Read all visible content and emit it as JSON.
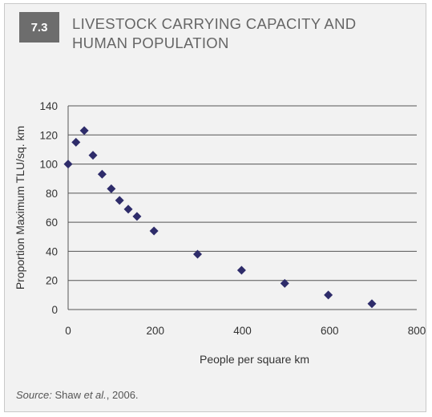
{
  "figure": {
    "number": "7.3",
    "title_line1": "LIVESTOCK CARRYING CAPACITY AND",
    "title_line2": "HUMAN POPULATION"
  },
  "source": {
    "label": "Source:",
    "author": "Shaw",
    "etal": "et al.",
    "year": ", 2006."
  },
  "colors": {
    "marker": "#2e2c6a",
    "panel_background": "#f2f2f2",
    "badge_background": "#6d6d6d",
    "title_text": "#666666"
  },
  "chart_data": {
    "type": "scatter",
    "xlabel": "People per square km",
    "ylabel": "Proportion Maximum TLU/sq. km",
    "xlim": [
      0,
      800
    ],
    "ylim": [
      0,
      140
    ],
    "xticks": [
      "0",
      "200",
      "400",
      "600",
      "800"
    ],
    "yticks": [
      "0",
      "20",
      "40",
      "60",
      "80",
      "100",
      "120",
      "140"
    ],
    "grid": "horizontal",
    "legend": "none",
    "marker": "diamond",
    "points": [
      {
        "x": 0,
        "y": 100
      },
      {
        "x": 18,
        "y": 115
      },
      {
        "x": 37,
        "y": 123
      },
      {
        "x": 57,
        "y": 106
      },
      {
        "x": 78,
        "y": 93
      },
      {
        "x": 99,
        "y": 83
      },
      {
        "x": 118,
        "y": 75
      },
      {
        "x": 138,
        "y": 69
      },
      {
        "x": 158,
        "y": 64
      },
      {
        "x": 197,
        "y": 54
      },
      {
        "x": 297,
        "y": 38
      },
      {
        "x": 398,
        "y": 27
      },
      {
        "x": 497,
        "y": 18
      },
      {
        "x": 597,
        "y": 10
      },
      {
        "x": 697,
        "y": 4
      }
    ]
  }
}
